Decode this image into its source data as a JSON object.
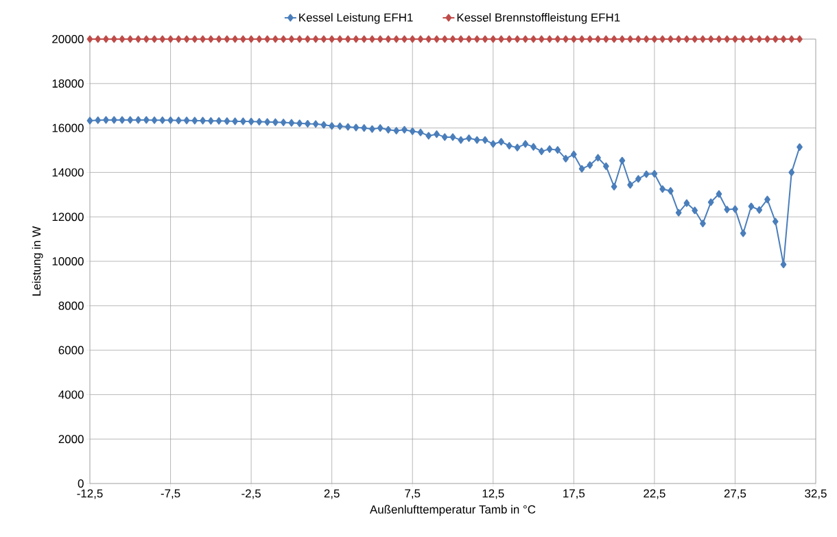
{
  "chart_data": {
    "type": "line",
    "xlabel": "Außenlufttemperatur Tamb in °C",
    "ylabel": "Leistung in W",
    "x": [
      -12.5,
      -12,
      -11.5,
      -11,
      -10.5,
      -10,
      -9.5,
      -9,
      -8.5,
      -8,
      -7.5,
      -7,
      -6.5,
      -6,
      -5.5,
      -5,
      -4.5,
      -4,
      -3.5,
      -3,
      -2.5,
      -2,
      -1.5,
      -1,
      -0.5,
      0,
      0.5,
      1,
      1.5,
      2,
      2.5,
      3,
      3.5,
      4,
      4.5,
      5,
      5.5,
      6,
      6.5,
      7,
      7.5,
      8,
      8.5,
      9,
      9.5,
      10,
      10.5,
      11,
      11.5,
      12,
      12.5,
      13,
      13.5,
      14,
      14.5,
      15,
      15.5,
      16,
      16.5,
      17,
      17.5,
      18,
      18.5,
      19,
      19.5,
      20,
      20.5,
      21,
      21.5,
      22,
      22.5,
      23,
      23.5,
      24,
      24.5,
      25,
      25.5,
      26,
      26.5,
      27,
      27.5,
      28,
      28.5,
      29,
      29.5,
      30,
      30.5,
      31,
      31.5
    ],
    "series": [
      {
        "name": "Kessel Leistung EFH1",
        "color": "#4a7ebb",
        "values": [
          16330,
          16350,
          16360,
          16360,
          16360,
          16360,
          16360,
          16360,
          16350,
          16350,
          16350,
          16340,
          16340,
          16330,
          16330,
          16320,
          16320,
          16310,
          16300,
          16300,
          16290,
          16280,
          16270,
          16260,
          16250,
          16230,
          16210,
          16190,
          16180,
          16140,
          16090,
          16080,
          16050,
          16020,
          16000,
          15950,
          16000,
          15920,
          15880,
          15920,
          15850,
          15800,
          15650,
          15720,
          15590,
          15590,
          15460,
          15540,
          15460,
          15460,
          15280,
          15380,
          15200,
          15120,
          15280,
          15150,
          14950,
          15050,
          15010,
          14620,
          14810,
          14160,
          14330,
          14660,
          14280,
          13360,
          14530,
          13440,
          13710,
          13920,
          13940,
          13250,
          13170,
          12190,
          12620,
          12290,
          11700,
          12660,
          13030,
          12330,
          12350,
          11260,
          12470,
          12310,
          12780,
          11790,
          9860,
          14000,
          15140
        ]
      },
      {
        "name": "Kessel Brennstoffleistung EFH1",
        "color": "#be4b48",
        "values": [
          20000,
          20000,
          20000,
          20000,
          20000,
          20000,
          20000,
          20000,
          20000,
          20000,
          20000,
          20000,
          20000,
          20000,
          20000,
          20000,
          20000,
          20000,
          20000,
          20000,
          20000,
          20000,
          20000,
          20000,
          20000,
          20000,
          20000,
          20000,
          20000,
          20000,
          20000,
          20000,
          20000,
          20000,
          20000,
          20000,
          20000,
          20000,
          20000,
          20000,
          20000,
          20000,
          20000,
          20000,
          20000,
          20000,
          20000,
          20000,
          20000,
          20000,
          20000,
          20000,
          20000,
          20000,
          20000,
          20000,
          20000,
          20000,
          20000,
          20000,
          20000,
          20000,
          20000,
          20000,
          20000,
          20000,
          20000,
          20000,
          20000,
          20000,
          20000,
          20000,
          20000,
          20000,
          20000,
          20000,
          20000,
          20000,
          20000,
          20000,
          20000,
          20000,
          20000,
          20000,
          20000,
          20000,
          20000,
          20000,
          20000
        ]
      }
    ],
    "xlim": [
      -12.5,
      32.5
    ],
    "xticks": [
      {
        "value": -12.5,
        "label": "-12,5"
      },
      {
        "value": -7.5,
        "label": "-7,5"
      },
      {
        "value": -2.5,
        "label": "-2,5"
      },
      {
        "value": 2.5,
        "label": "2,5"
      },
      {
        "value": 7.5,
        "label": "7,5"
      },
      {
        "value": 12.5,
        "label": "12,5"
      },
      {
        "value": 17.5,
        "label": "17,5"
      },
      {
        "value": 22.5,
        "label": "22,5"
      },
      {
        "value": 27.5,
        "label": "27,5"
      },
      {
        "value": 32.5,
        "label": "32,5"
      }
    ],
    "ylim": [
      0,
      20000
    ],
    "yticks": [
      0,
      2000,
      4000,
      6000,
      8000,
      10000,
      12000,
      14000,
      16000,
      18000,
      20000
    ],
    "grid": true,
    "legend": "top",
    "marker": "diamond",
    "line_style": "solid"
  }
}
